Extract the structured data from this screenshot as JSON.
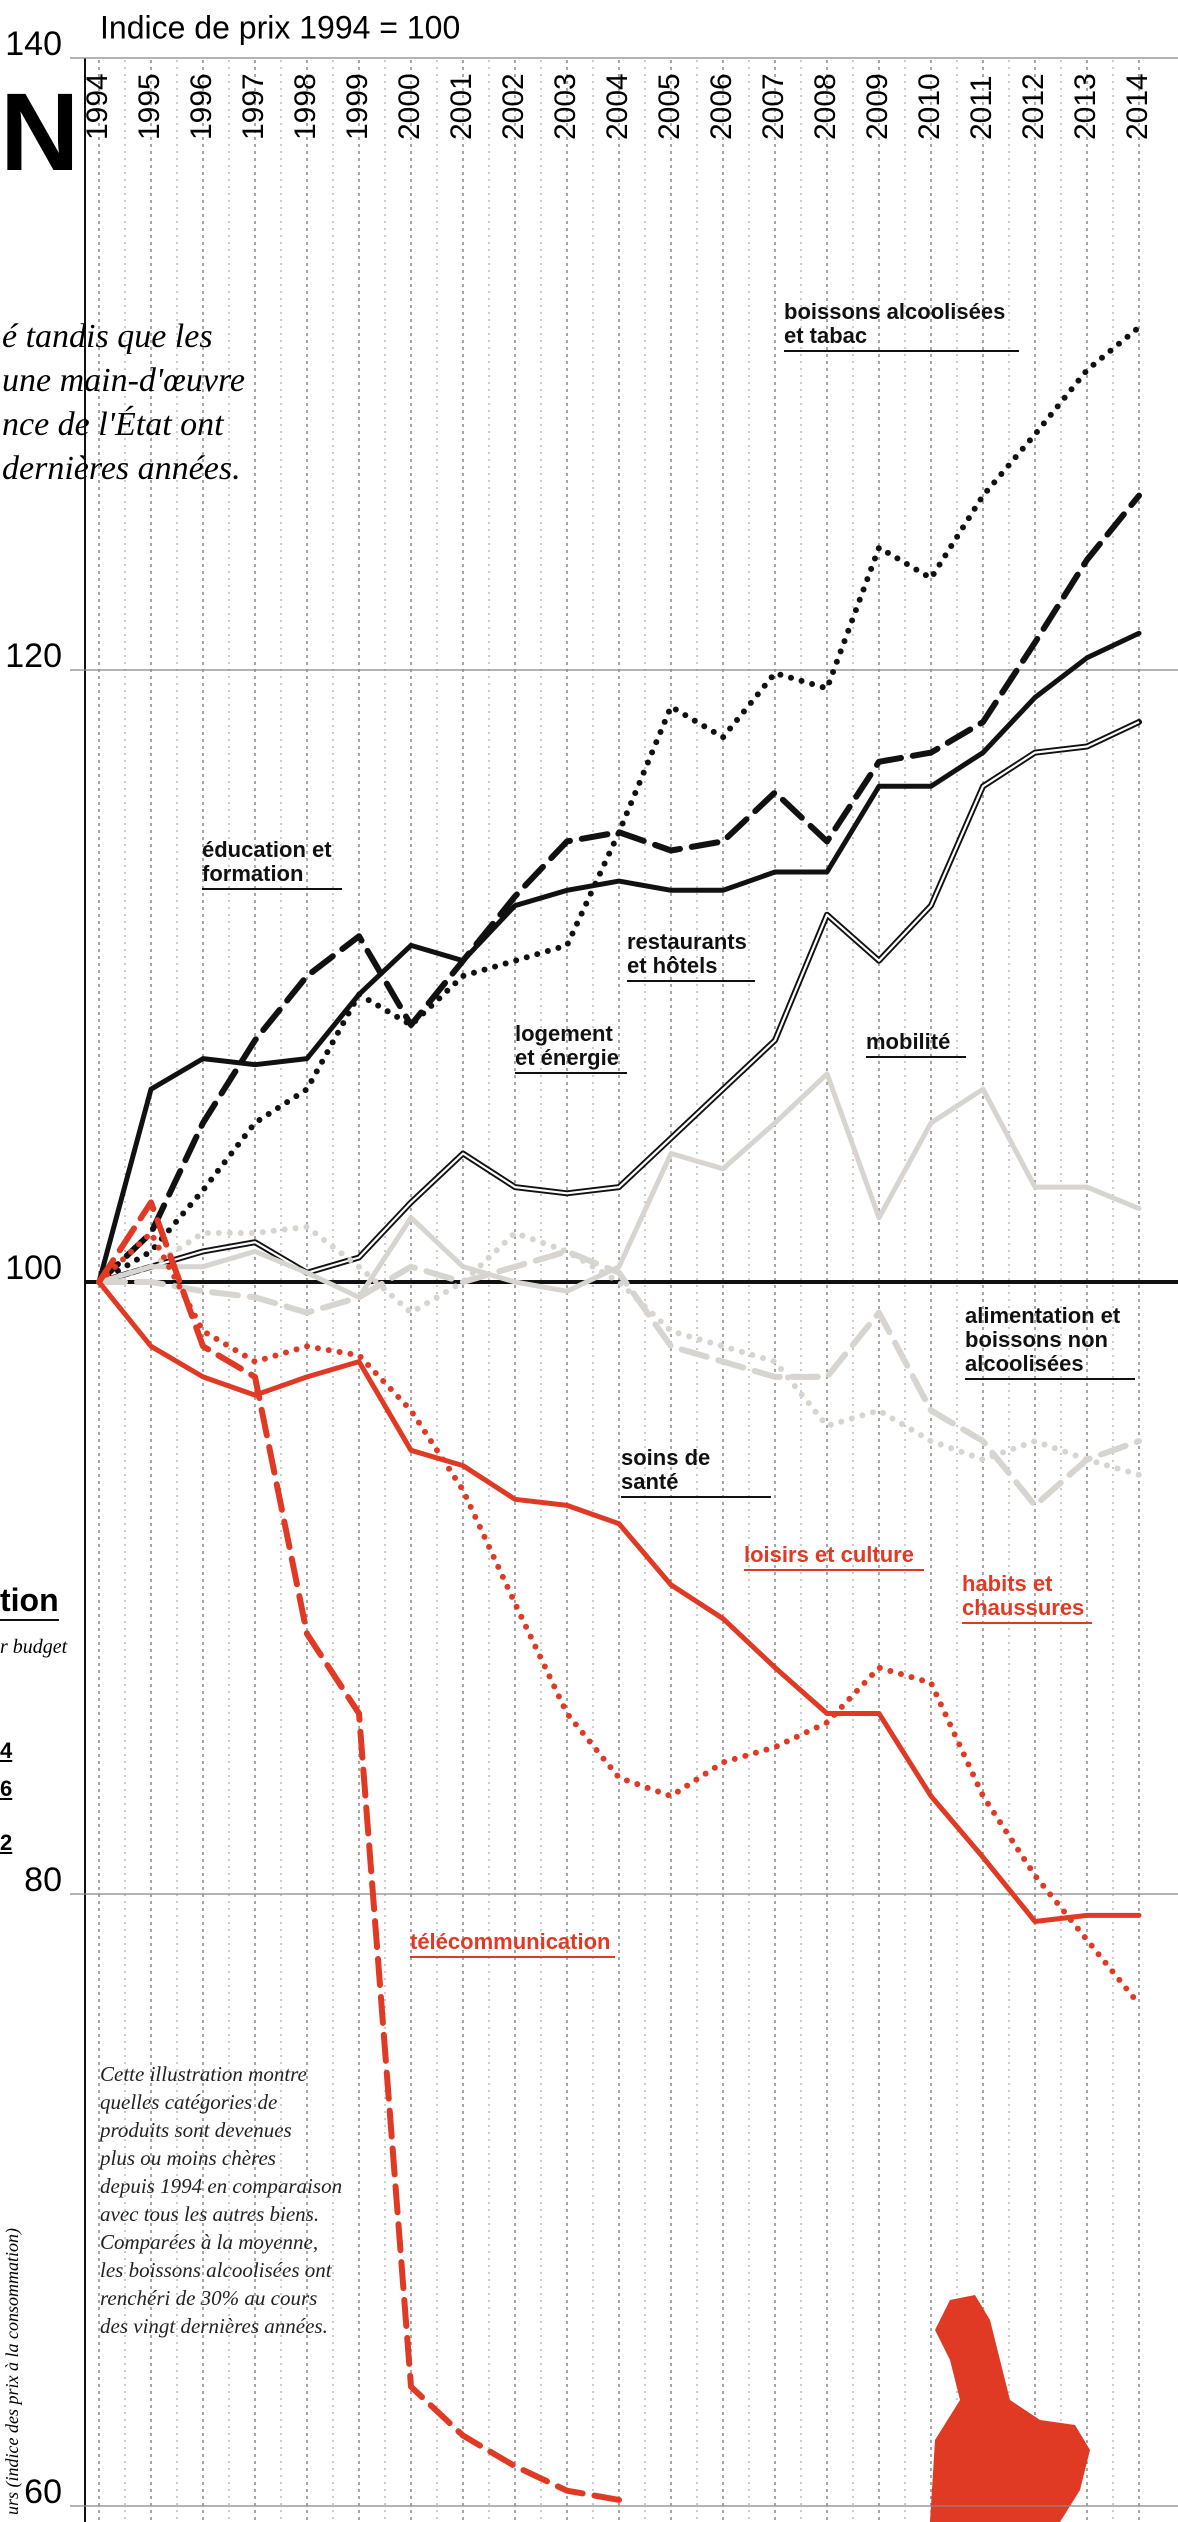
{
  "page": {
    "big_letter": "N",
    "intro_lines": [
      "é tandis que les",
      "une main-d'œuvre",
      "nce de l'État ont",
      "dernières années."
    ],
    "side_heading": "tion",
    "side_sub": "r budget",
    "side_numbers": [
      "4",
      "6",
      "2"
    ],
    "side_vertical": "urs (indice des prix à la consommation)"
  },
  "chart_data": {
    "type": "line",
    "title": "Indice de prix 1994 = 100",
    "x": [
      1994,
      1995,
      1996,
      1997,
      1998,
      1999,
      2000,
      2001,
      2002,
      2003,
      2004,
      2005,
      2006,
      2007,
      2008,
      2009,
      2010,
      2011,
      2012,
      2013,
      2014
    ],
    "xlim": [
      1994,
      2014
    ],
    "xticks": [
      1994,
      1995,
      1996,
      1997,
      1998,
      1999,
      2000,
      2001,
      2002,
      2003,
      2004,
      2005,
      2006,
      2007,
      2008,
      2009,
      2010,
      2011,
      2012,
      2013,
      2014
    ],
    "ylim": [
      60,
      140
    ],
    "yticks": [
      60,
      80,
      100,
      120,
      140
    ],
    "baseline": 100,
    "grid": true,
    "series": [
      {
        "name": "boissons alcoolisées et tabac",
        "color": "#111111",
        "style": "dotted",
        "values": [
          100,
          101,
          103,
          105.2,
          106.3,
          109.4,
          108.4,
          110,
          110.5,
          111,
          114.7,
          118.8,
          117.8,
          119.9,
          119.4,
          124,
          123,
          125.7,
          127.7,
          129.8,
          131.2
        ]
      },
      {
        "name": "éducation et formation",
        "color": "#111111",
        "style": "dashed",
        "values": [
          100,
          101.6,
          105.2,
          107.9,
          110,
          111.3,
          108.4,
          110.5,
          112.6,
          114.4,
          114.7,
          114.1,
          114.4,
          116,
          114.4,
          117,
          117.3,
          118.3,
          120.9,
          123.6,
          125.7
        ]
      },
      {
        "name": "restaurants et hôtels",
        "color": "#111111",
        "style": "solid",
        "values": [
          100,
          106.3,
          107.3,
          107.1,
          107.3,
          109.4,
          111,
          110.5,
          112.3,
          112.8,
          113.1,
          112.8,
          112.8,
          113.4,
          113.4,
          116.2,
          116.2,
          117.3,
          119.1,
          120.4,
          121.2
        ]
      },
      {
        "name": "logement et énergie",
        "color": "#111111",
        "style": "double",
        "values": [
          100,
          100.5,
          101,
          101.3,
          100.3,
          100.8,
          102.6,
          104.2,
          103.1,
          102.9,
          103.1,
          104.7,
          106.3,
          107.9,
          112,
          110.5,
          112.3,
          116.2,
          117.3,
          117.5,
          118.3
        ]
      },
      {
        "name": "mobilité",
        "color": "#d8d4d0",
        "style": "solid",
        "values": [
          100,
          100.5,
          100.5,
          101,
          100.3,
          99.5,
          102.1,
          100.5,
          100,
          99.7,
          100.5,
          104.2,
          103.7,
          105.2,
          106.8,
          102.1,
          105.2,
          106.3,
          103.1,
          103.1,
          102.4
        ]
      },
      {
        "name": "alimentation et boissons non alcoolisées",
        "color": "#d8d4d0",
        "style": "dashed",
        "values": [
          100,
          100,
          99.7,
          99.5,
          99,
          99.5,
          100.5,
          100,
          100.5,
          101,
          100.3,
          97.9,
          97.4,
          96.9,
          96.9,
          99,
          95.8,
          94.8,
          92.7,
          94.2,
          94.8
        ]
      },
      {
        "name": "soins de santé",
        "color": "#d8d4d0",
        "style": "dotted",
        "values": [
          100,
          100.5,
          101.6,
          101.6,
          101.8,
          100.5,
          99,
          100,
          101.6,
          101,
          100,
          98.4,
          97.9,
          97.4,
          95.3,
          95.8,
          94.8,
          94.2,
          94.8,
          94.2,
          93.7
        ]
      },
      {
        "name": "loisirs et culture",
        "color": "#e03a24",
        "style": "solid",
        "values": [
          100,
          97.9,
          96.9,
          96.3,
          96.9,
          97.4,
          94.5,
          94,
          92.9,
          92.7,
          92.1,
          90.1,
          89,
          87.4,
          85.9,
          85.9,
          83.2,
          81.2,
          79.1,
          79.3,
          79.3
        ]
      },
      {
        "name": "habits et chaussures",
        "color": "#e03a24",
        "style": "dotted",
        "values": [
          100,
          101.6,
          98.4,
          97.4,
          97.9,
          97.6,
          95.8,
          93.2,
          89.5,
          85.9,
          83.8,
          83.2,
          84.3,
          84.8,
          85.6,
          87.4,
          86.9,
          83.2,
          80.6,
          78.5,
          76.4
        ]
      },
      {
        "name": "télécommunication",
        "color": "#e03a24",
        "style": "dashed",
        "values": [
          100,
          102.6,
          97.9,
          96.9,
          88.5,
          85.9,
          63.9,
          62.3,
          61.3,
          60.5,
          60.2,
          null,
          null,
          null,
          null,
          null,
          null,
          null,
          null,
          null,
          null
        ]
      }
    ],
    "note": [
      "Cette illustration montre",
      "quelles catégories de",
      "produits sont  devenues",
      "plus ou moins chères",
      "depuis 1994 en comparaison",
      "avec tous les autres biens.",
      "Comparées à la moyenne,",
      "les boissons alcoolisées ont",
      "renchéri de 30% au cours",
      "des vingt dernières années."
    ]
  }
}
